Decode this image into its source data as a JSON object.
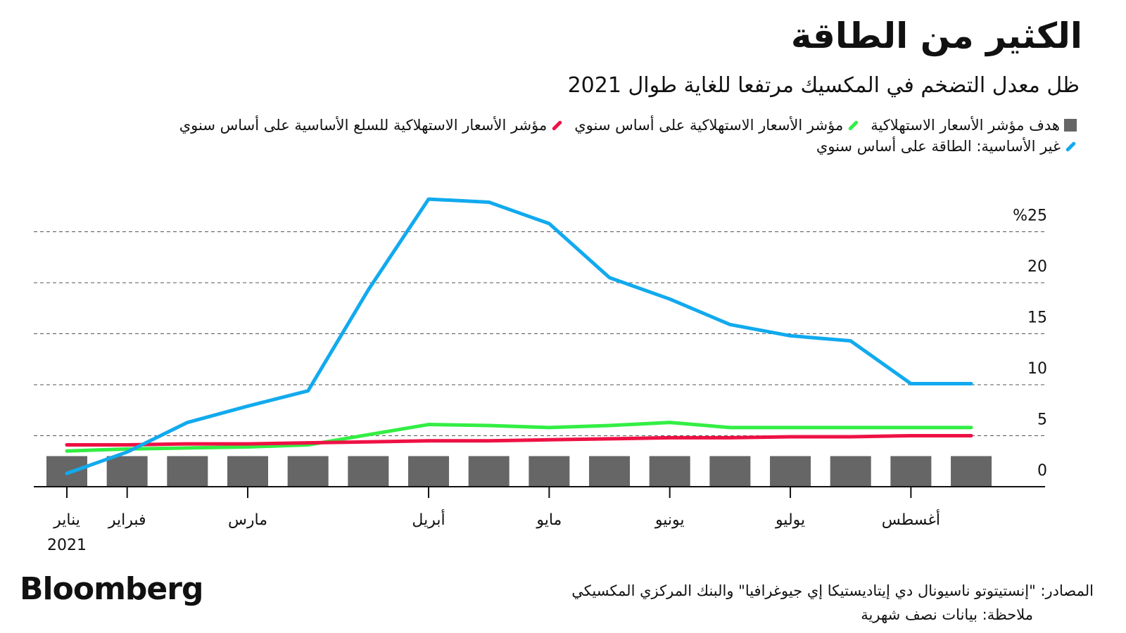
{
  "chart_data": {
    "type": "line",
    "title": "الكثير من الطاقة",
    "subtitle": "ظل معدل التضخم في المكسيك مرتفعا للغاية طوال 2021",
    "categories": [
      "يناير",
      "فبراير",
      null,
      "مارس",
      null,
      null,
      "أبريل",
      null,
      "مايو",
      null,
      "يونيو",
      null,
      "يوليو",
      null,
      "أغسطس",
      null
    ],
    "year_label": "2021",
    "series": [
      {
        "name": "هدف مؤشر الأسعار الاستهلاكية",
        "type": "bar",
        "color": "#666666",
        "values": [
          3,
          3,
          3,
          3,
          3,
          3,
          3,
          3,
          3,
          3,
          3,
          3,
          3,
          3,
          3,
          3
        ]
      },
      {
        "name": "مؤشر الأسعار الاستهلاكية على أساس سنوي",
        "color": "#33ee44",
        "values": [
          3.5,
          3.7,
          3.8,
          3.9,
          4.1,
          5.1,
          6.1,
          6.0,
          5.8,
          6.0,
          6.3,
          5.8,
          5.8,
          5.8,
          5.8,
          5.8
        ]
      },
      {
        "name": "مؤشر الأسعار الاستهلاكية للسلع الأساسية على أساس سنوي",
        "color": "#ee1144",
        "values": [
          4.1,
          4.1,
          4.2,
          4.2,
          4.3,
          4.4,
          4.5,
          4.5,
          4.6,
          4.7,
          4.8,
          4.8,
          4.9,
          4.9,
          5.0,
          5.0
        ]
      },
      {
        "name": "غير الأساسية: الطاقة على أساس سنوي",
        "color": "#11aaee",
        "values": [
          1.3,
          3.4,
          6.3,
          7.9,
          9.4,
          19.3,
          28.2,
          27.9,
          25.8,
          20.5,
          18.4,
          15.9,
          14.8,
          14.3,
          10.1,
          10.1
        ]
      }
    ],
    "ylim": [
      0,
      29
    ],
    "yticks": [
      0,
      5,
      10,
      15,
      20,
      {
        "value": 25,
        "label": "%25"
      }
    ],
    "grid": true,
    "source": "المصادر: \"إنستيتوتو ناسيونال دي إيتاديستيكا إي جيوغرافيا\" والبنك المركزي المكسيكي",
    "note": "ملاحظة: بيانات نصف شهرية",
    "brand": "Bloomberg"
  }
}
